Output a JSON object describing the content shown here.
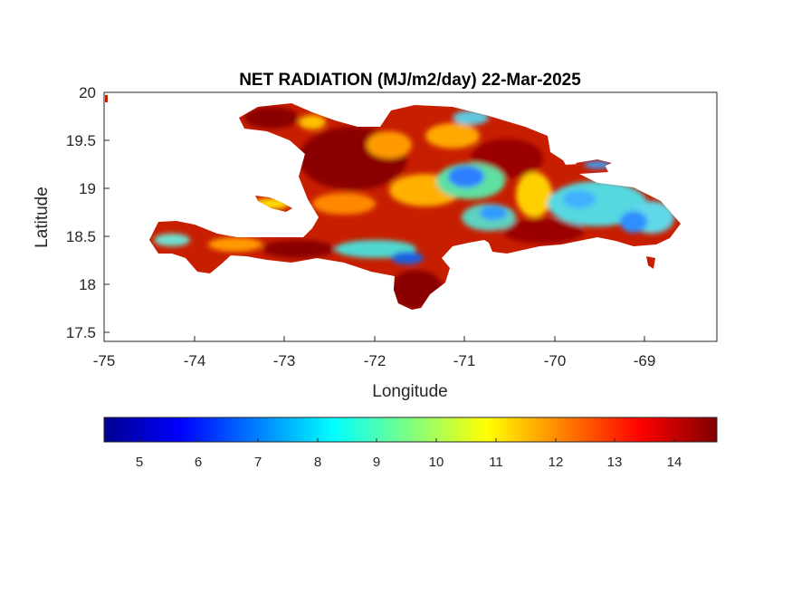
{
  "map": {
    "title": "NET RADIATION (MJ/m2/day) 22-Mar-2025",
    "xlabel": "Longitude",
    "ylabel": "Latitude",
    "x_ticks": [
      "-75",
      "-74",
      "-73",
      "-72",
      "-71",
      "-70",
      "-69"
    ],
    "y_ticks": [
      "20",
      "19.5",
      "19",
      "18.5",
      "18",
      "17.5"
    ],
    "x_range": [
      -75,
      -68.2
    ],
    "y_range": [
      17.4,
      20
    ],
    "region": "Hispaniola (Haiti and Dominican Republic)"
  },
  "colorbar": {
    "colormap": "jet",
    "range": [
      4.4,
      14.7
    ],
    "ticks": [
      "5",
      "6",
      "7",
      "8",
      "9",
      "10",
      "11",
      "12",
      "13",
      "14"
    ],
    "colors": [
      "#00008f",
      "#0000ff",
      "#0080ff",
      "#00ffff",
      "#80ff80",
      "#ffff00",
      "#ff8000",
      "#ff0000",
      "#800000"
    ]
  },
  "fields": {
    "dominant_color": "#c81e00",
    "low_value_color": "#2f9bff",
    "high_value_color": "#8a0000"
  }
}
